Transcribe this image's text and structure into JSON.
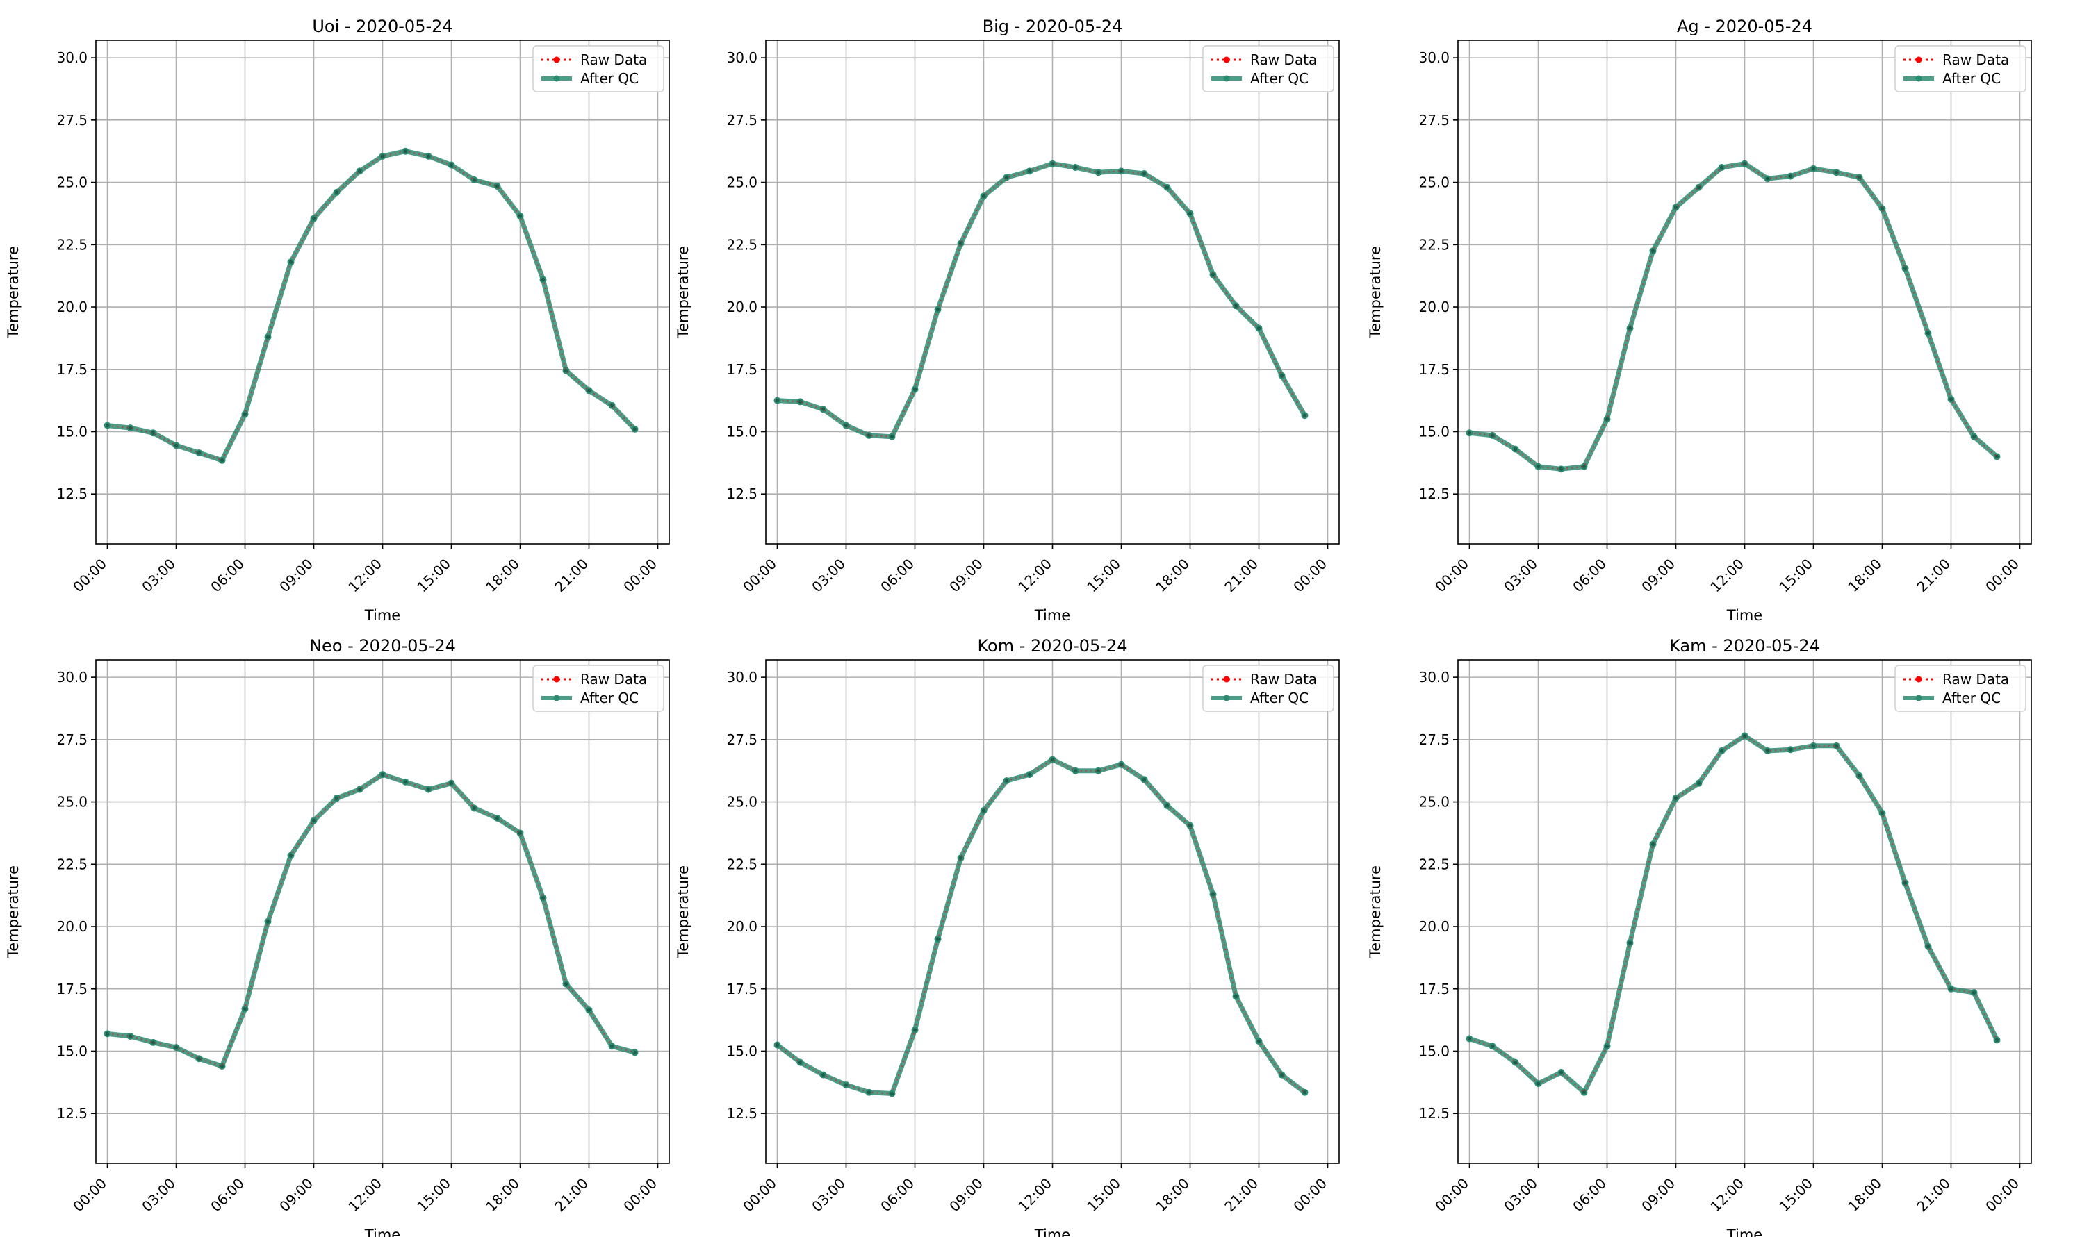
{
  "figure": {
    "legend_labels": {
      "raw": "Raw Data",
      "qc": "After QC"
    },
    "colors": {
      "raw": "#ff0000",
      "qc": "#2e8b72",
      "grid": "#b0b0b0"
    }
  },
  "chart_data": [
    {
      "type": "line",
      "title": "Uoi - 2020-05-24",
      "xlabel": "Time",
      "ylabel": "Temperature",
      "x_ticks": [
        "00:00",
        "03:00",
        "06:00",
        "09:00",
        "12:00",
        "15:00",
        "18:00",
        "21:00",
        "00:00"
      ],
      "y_ticks": [
        "12.5",
        "15.0",
        "17.5",
        "20.0",
        "22.5",
        "25.0",
        "27.5",
        "30.0"
      ],
      "xlim": [
        -0.5,
        24.5
      ],
      "ylim": [
        10.5,
        30.7
      ],
      "grid": true,
      "legend": "top-right",
      "x": [
        0,
        1,
        2,
        3,
        4,
        5,
        6,
        7,
        8,
        9,
        10,
        11,
        12,
        13,
        14,
        15,
        16,
        17,
        18,
        19,
        20,
        21,
        22,
        23
      ],
      "series": [
        {
          "name": "Raw Data",
          "values": [
            15.25,
            15.15,
            14.95,
            14.45,
            14.15,
            13.85,
            15.7,
            18.8,
            21.8,
            23.55,
            24.6,
            25.45,
            26.05,
            26.25,
            26.05,
            25.7,
            25.1,
            24.85,
            23.65,
            21.1,
            17.45,
            16.65,
            16.05,
            15.1
          ]
        },
        {
          "name": "After QC",
          "values": [
            15.25,
            15.15,
            14.95,
            14.45,
            14.15,
            13.85,
            15.7,
            18.8,
            21.8,
            23.55,
            24.6,
            25.45,
            26.05,
            26.25,
            26.05,
            25.7,
            25.1,
            24.85,
            23.65,
            21.1,
            17.45,
            16.65,
            16.05,
            15.1
          ]
        }
      ]
    },
    {
      "type": "line",
      "title": "Big - 2020-05-24",
      "xlabel": "Time",
      "ylabel": "Temperature",
      "x_ticks": [
        "00:00",
        "03:00",
        "06:00",
        "09:00",
        "12:00",
        "15:00",
        "18:00",
        "21:00",
        "00:00"
      ],
      "y_ticks": [
        "12.5",
        "15.0",
        "17.5",
        "20.0",
        "22.5",
        "25.0",
        "27.5",
        "30.0"
      ],
      "xlim": [
        -0.5,
        24.5
      ],
      "ylim": [
        10.5,
        30.7
      ],
      "grid": true,
      "legend": "top-right",
      "x": [
        0,
        1,
        2,
        3,
        4,
        5,
        6,
        7,
        8,
        9,
        10,
        11,
        12,
        13,
        14,
        15,
        16,
        17,
        18,
        19,
        20,
        21,
        22,
        23
      ],
      "series": [
        {
          "name": "Raw Data",
          "values": [
            16.25,
            16.2,
            15.9,
            15.25,
            14.85,
            14.8,
            16.7,
            19.9,
            22.55,
            24.45,
            25.2,
            25.45,
            25.75,
            25.6,
            25.4,
            25.45,
            25.35,
            24.8,
            23.75,
            21.3,
            20.05,
            19.15,
            17.25,
            15.65
          ]
        },
        {
          "name": "After QC",
          "values": [
            16.25,
            16.2,
            15.9,
            15.25,
            14.85,
            14.8,
            16.7,
            19.9,
            22.55,
            24.45,
            25.2,
            25.45,
            25.75,
            25.6,
            25.4,
            25.45,
            25.35,
            24.8,
            23.75,
            21.3,
            20.05,
            19.15,
            17.25,
            15.65
          ]
        }
      ]
    },
    {
      "type": "line",
      "title": "Ag - 2020-05-24",
      "xlabel": "Time",
      "ylabel": "Temperature",
      "x_ticks": [
        "00:00",
        "03:00",
        "06:00",
        "09:00",
        "12:00",
        "15:00",
        "18:00",
        "21:00",
        "00:00"
      ],
      "y_ticks": [
        "12.5",
        "15.0",
        "17.5",
        "20.0",
        "22.5",
        "25.0",
        "27.5",
        "30.0"
      ],
      "xlim": [
        -0.5,
        24.5
      ],
      "ylim": [
        10.5,
        30.7
      ],
      "grid": true,
      "legend": "top-right",
      "x": [
        0,
        1,
        2,
        3,
        4,
        5,
        6,
        7,
        8,
        9,
        10,
        11,
        12,
        13,
        14,
        15,
        16,
        17,
        18,
        19,
        20,
        21,
        22,
        23
      ],
      "series": [
        {
          "name": "Raw Data",
          "values": [
            14.95,
            14.85,
            14.3,
            13.6,
            13.5,
            13.6,
            15.5,
            19.15,
            22.25,
            24.0,
            24.8,
            25.6,
            25.75,
            25.15,
            25.25,
            25.55,
            25.4,
            25.2,
            23.95,
            21.55,
            18.95,
            16.3,
            14.8,
            14.0
          ]
        },
        {
          "name": "After QC",
          "values": [
            14.95,
            14.85,
            14.3,
            13.6,
            13.5,
            13.6,
            15.5,
            19.15,
            22.25,
            24.0,
            24.8,
            25.6,
            25.75,
            25.15,
            25.25,
            25.55,
            25.4,
            25.2,
            23.95,
            21.55,
            18.95,
            16.3,
            14.8,
            14.0
          ]
        }
      ]
    },
    {
      "type": "line",
      "title": "Neo - 2020-05-24",
      "xlabel": "Time",
      "ylabel": "Temperature",
      "x_ticks": [
        "00:00",
        "03:00",
        "06:00",
        "09:00",
        "12:00",
        "15:00",
        "18:00",
        "21:00",
        "00:00"
      ],
      "y_ticks": [
        "12.5",
        "15.0",
        "17.5",
        "20.0",
        "22.5",
        "25.0",
        "27.5",
        "30.0"
      ],
      "xlim": [
        -0.5,
        24.5
      ],
      "ylim": [
        10.5,
        30.7
      ],
      "grid": true,
      "legend": "top-right",
      "x": [
        0,
        1,
        2,
        3,
        4,
        5,
        6,
        7,
        8,
        9,
        10,
        11,
        12,
        13,
        14,
        15,
        16,
        17,
        18,
        19,
        20,
        21,
        22,
        23
      ],
      "series": [
        {
          "name": "Raw Data",
          "values": [
            15.7,
            15.6,
            15.35,
            15.15,
            14.7,
            14.4,
            16.7,
            20.2,
            22.85,
            24.25,
            25.15,
            25.5,
            26.1,
            25.8,
            25.5,
            25.75,
            24.75,
            24.35,
            23.75,
            21.15,
            17.7,
            16.65,
            15.2,
            14.95
          ]
        },
        {
          "name": "After QC",
          "values": [
            15.7,
            15.6,
            15.35,
            15.15,
            14.7,
            14.4,
            16.7,
            20.2,
            22.85,
            24.25,
            25.15,
            25.5,
            26.1,
            25.8,
            25.5,
            25.75,
            24.75,
            24.35,
            23.75,
            21.15,
            17.7,
            16.65,
            15.2,
            14.95
          ]
        }
      ]
    },
    {
      "type": "line",
      "title": "Kom - 2020-05-24",
      "xlabel": "Time",
      "ylabel": "Temperature",
      "x_ticks": [
        "00:00",
        "03:00",
        "06:00",
        "09:00",
        "12:00",
        "15:00",
        "18:00",
        "21:00",
        "00:00"
      ],
      "y_ticks": [
        "12.5",
        "15.0",
        "17.5",
        "20.0",
        "22.5",
        "25.0",
        "27.5",
        "30.0"
      ],
      "xlim": [
        -0.5,
        24.5
      ],
      "ylim": [
        10.5,
        30.7
      ],
      "grid": true,
      "legend": "top-right",
      "x": [
        0,
        1,
        2,
        3,
        4,
        5,
        6,
        7,
        8,
        9,
        10,
        11,
        12,
        13,
        14,
        15,
        16,
        17,
        18,
        19,
        20,
        21,
        22,
        23
      ],
      "series": [
        {
          "name": "Raw Data",
          "values": [
            15.25,
            14.55,
            14.05,
            13.65,
            13.35,
            13.3,
            15.85,
            19.5,
            22.75,
            24.65,
            25.85,
            26.1,
            26.7,
            26.25,
            26.25,
            26.5,
            25.9,
            24.85,
            24.05,
            21.3,
            17.2,
            15.4,
            14.05,
            13.35
          ]
        },
        {
          "name": "After QC",
          "values": [
            15.25,
            14.55,
            14.05,
            13.65,
            13.35,
            13.3,
            15.85,
            19.5,
            22.75,
            24.65,
            25.85,
            26.1,
            26.7,
            26.25,
            26.25,
            26.5,
            25.9,
            24.85,
            24.05,
            21.3,
            17.2,
            15.4,
            14.05,
            13.35
          ]
        }
      ]
    },
    {
      "type": "line",
      "title": "Kam - 2020-05-24",
      "xlabel": "Time",
      "ylabel": "Temperature",
      "x_ticks": [
        "00:00",
        "03:00",
        "06:00",
        "09:00",
        "12:00",
        "15:00",
        "18:00",
        "21:00",
        "00:00"
      ],
      "y_ticks": [
        "12.5",
        "15.0",
        "17.5",
        "20.0",
        "22.5",
        "25.0",
        "27.5",
        "30.0"
      ],
      "xlim": [
        -0.5,
        24.5
      ],
      "ylim": [
        10.5,
        30.7
      ],
      "grid": true,
      "legend": "top-right",
      "x": [
        0,
        1,
        2,
        3,
        4,
        5,
        6,
        7,
        8,
        9,
        10,
        11,
        12,
        13,
        14,
        15,
        16,
        17,
        18,
        19,
        20,
        21,
        22,
        23
      ],
      "series": [
        {
          "name": "Raw Data",
          "values": [
            15.5,
            15.2,
            14.55,
            13.7,
            14.15,
            13.35,
            15.2,
            19.35,
            23.3,
            25.15,
            25.75,
            27.05,
            27.65,
            27.05,
            27.1,
            27.25,
            27.25,
            26.05,
            24.55,
            21.75,
            19.2,
            17.5,
            17.35,
            15.45
          ]
        },
        {
          "name": "After QC",
          "values": [
            15.5,
            15.2,
            14.55,
            13.7,
            14.15,
            13.35,
            15.2,
            19.35,
            23.3,
            25.15,
            25.75,
            27.05,
            27.65,
            27.05,
            27.1,
            27.25,
            27.25,
            26.05,
            24.55,
            21.75,
            19.2,
            17.5,
            17.35,
            15.45
          ]
        }
      ]
    }
  ]
}
